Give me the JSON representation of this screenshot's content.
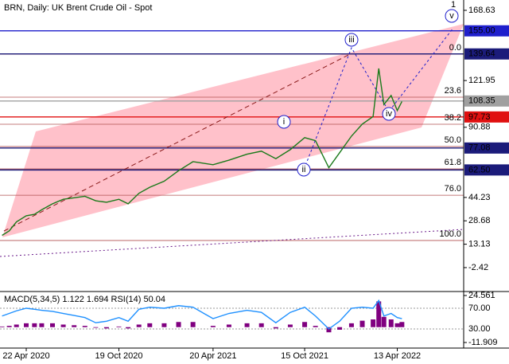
{
  "chart_data": {
    "type": "line",
    "title": "BRN, Daily:  UK Brent Crude Oil - Spot",
    "x": [
      "2020-03-06",
      "2020-03-20",
      "2020-04-03",
      "2020-04-22",
      "2020-05-08",
      "2020-05-22",
      "2020-06-12",
      "2020-07-03",
      "2020-07-24",
      "2020-08-14",
      "2020-09-04",
      "2020-09-25",
      "2020-10-19",
      "2020-11-06",
      "2020-11-27",
      "2020-12-18",
      "2021-01-15",
      "2021-02-12",
      "2021-03-12",
      "2021-04-20",
      "2021-05-21",
      "2021-06-25",
      "2021-07-23",
      "2021-08-20",
      "2021-09-17",
      "2021-10-15",
      "2021-11-05",
      "2021-12-01",
      "2021-12-22",
      "2022-01-14",
      "2022-02-04",
      "2022-02-25",
      "2022-03-08",
      "2022-03-18",
      "2022-04-01",
      "2022-04-13",
      "2022-04-22"
    ],
    "series": [
      {
        "name": "BRN",
        "color": "#1a7a1a",
        "values": [
          19,
          22,
          28,
          32,
          33,
          36,
          40,
          43,
          44,
          45,
          42,
          41,
          43,
          40,
          47,
          51,
          55,
          62,
          68,
          66,
          69,
          73,
          75,
          70,
          76,
          84,
          82,
          64,
          74,
          85,
          93,
          98,
          130,
          106,
          112,
          102,
          108
        ]
      }
    ],
    "xlim": [
      "2020-03-02",
      "2022-08-20"
    ],
    "xticks": [
      {
        "value": "2020-04-22",
        "label": "22 Apr 2020"
      },
      {
        "value": "2020-10-19",
        "label": "19 Oct 2020"
      },
      {
        "value": "2021-04-20",
        "label": "20 Apr 2021"
      },
      {
        "value": "2021-10-15",
        "label": "15 Oct 2021"
      },
      {
        "value": "2022-04-13",
        "label": "13 Apr 2022"
      }
    ],
    "ylim": [
      -17.8,
      175.5
    ],
    "yticks": [
      168.63,
      121.95,
      90.88,
      44.23,
      28.68,
      13.13,
      -2.42
    ],
    "levels": [
      {
        "value": 155,
        "label": "155.00",
        "color": "#1f1fcc"
      },
      {
        "value": 139.64,
        "label": "139.64",
        "color": "#1b1b7a"
      },
      {
        "value": 108.35,
        "label": "108.35",
        "color": "#a0a0a0"
      },
      {
        "value": 97.73,
        "label": "97.73",
        "color": "#e01010"
      },
      {
        "value": 77.08,
        "label": "77.08",
        "color": "#1b1b7a"
      },
      {
        "value": 62.5,
        "label": "62.50",
        "color": "#1b1b7a"
      }
    ],
    "fib_levels": [
      {
        "value": 139.5,
        "label": "0.0"
      },
      {
        "value": 110.9,
        "label": "23.6"
      },
      {
        "value": 92.9,
        "label": "38.2"
      },
      {
        "value": 78.1,
        "label": "50.0"
      },
      {
        "value": 63.2,
        "label": "61.8"
      },
      {
        "value": 45.7,
        "label": "76.0"
      },
      {
        "value": 15.6,
        "label": "100.0"
      }
    ],
    "waves": [
      "i",
      "ii",
      "iii",
      "iv",
      "v",
      "1"
    ],
    "indicator": {
      "title": "MACD(5,34,5) 1.122 1.694 RSI(14) 50.04",
      "macd": {
        "name": "MACD",
        "color": "#800080",
        "values": [
          0.5,
          1,
          2,
          3,
          3,
          3,
          3,
          2,
          1.5,
          1,
          -0.5,
          -1,
          0.5,
          -1,
          2,
          3,
          3,
          4,
          4,
          1,
          2,
          3,
          3,
          -1,
          2,
          4,
          1,
          -4,
          -2,
          3,
          5,
          6,
          20,
          8,
          6,
          3,
          4
        ]
      },
      "rsi": {
        "name": "RSI",
        "color": "#1e90ff",
        "values": [
          55,
          60,
          65,
          70,
          68,
          66,
          64,
          60,
          56,
          52,
          42,
          45,
          52,
          45,
          68,
          72,
          70,
          75,
          72,
          50,
          60,
          66,
          62,
          42,
          62,
          72,
          55,
          30,
          45,
          70,
          72,
          70,
          85,
          55,
          60,
          52,
          50
        ]
      },
      "ylim": [
        -16.24,
        27.65
      ],
      "yticks": [
        24.561,
        -11.909
      ],
      "y2lim": [
        -6.9,
        102.3
      ],
      "y2ticks": [
        {
          "value": 70,
          "label": "70.00"
        },
        {
          "value": 30,
          "label": "30.00"
        }
      ]
    }
  }
}
